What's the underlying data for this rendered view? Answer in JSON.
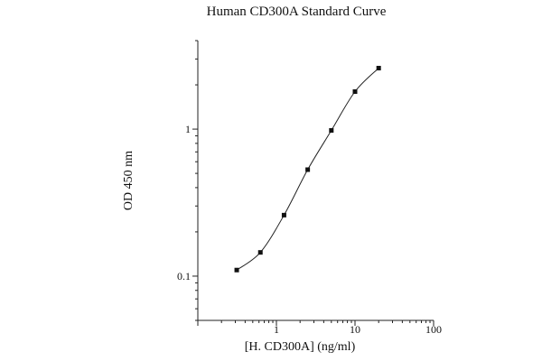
{
  "chart_data": {
    "type": "scatter",
    "title": "Human CD300A Standard Curve",
    "xlabel": "[H. CD300A] (ng/ml)",
    "ylabel": "OD 450 nm",
    "xscale": "log",
    "yscale": "log",
    "xlim": [
      0.1,
      100
    ],
    "ylim": [
      0.05,
      4
    ],
    "x_ticks": [
      {
        "value": 1,
        "label": "1"
      },
      {
        "value": 10,
        "label": "10"
      },
      {
        "value": 100,
        "label": "100"
      }
    ],
    "y_ticks": [
      {
        "value": 0.1,
        "label": "0.1"
      },
      {
        "value": 1,
        "label": "1"
      }
    ],
    "grid": false,
    "legend": "none",
    "fit_line": "smooth curve through points",
    "series": [
      {
        "x": [
          0.3125,
          0.625,
          1.25,
          2.5,
          5,
          10,
          20
        ],
        "y": [
          0.11,
          0.145,
          0.26,
          0.53,
          0.98,
          1.8,
          2.6
        ]
      }
    ]
  }
}
